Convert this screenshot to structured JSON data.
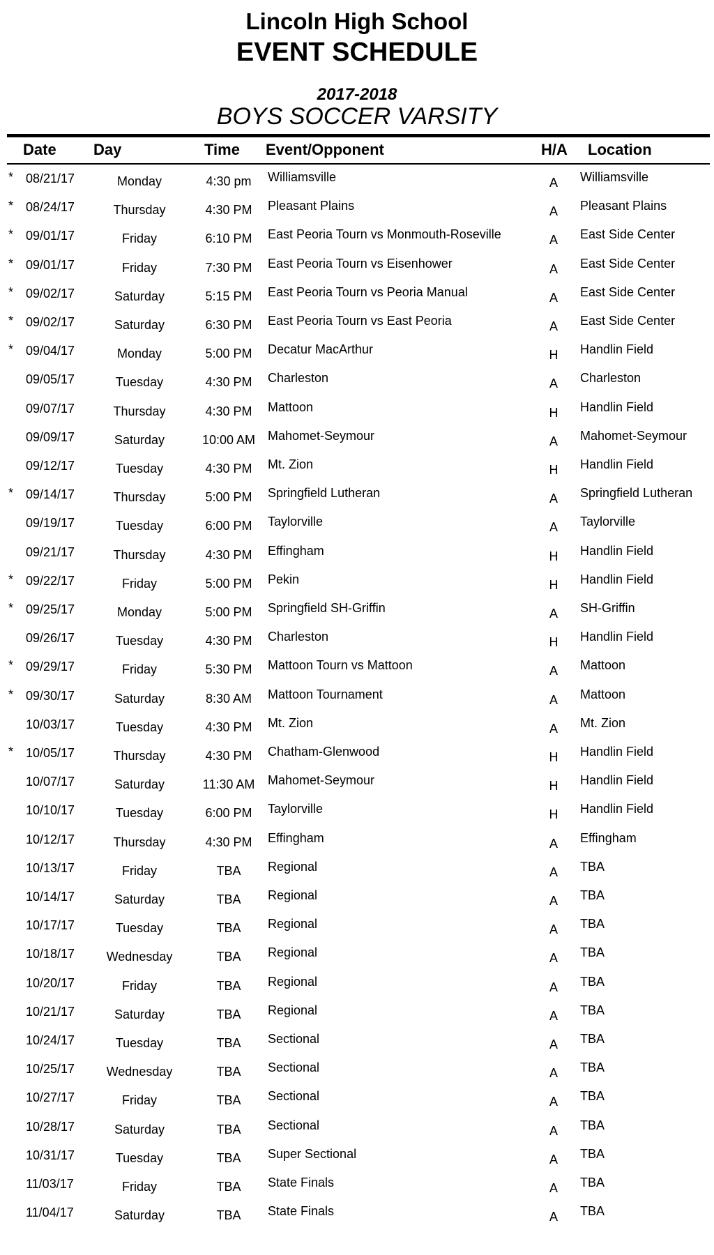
{
  "header": {
    "school": "Lincoln High School",
    "title": "EVENT SCHEDULE",
    "year": "2017-2018",
    "sport": "BOYS SOCCER VARSITY"
  },
  "columns": {
    "date": "Date",
    "day": "Day",
    "time": "Time",
    "event": "Event/Opponent",
    "ha": "H/A",
    "location": "Location"
  },
  "rows": [
    {
      "star": "*",
      "date": "08/21/17",
      "day": "Monday",
      "time": "4:30 pm",
      "event": "Williamsville",
      "ha": "A",
      "location": "Williamsville"
    },
    {
      "star": "*",
      "date": "08/24/17",
      "day": "Thursday",
      "time": "4:30 PM",
      "event": "Pleasant Plains",
      "ha": "A",
      "location": "Pleasant Plains"
    },
    {
      "star": "*",
      "date": "09/01/17",
      "day": "Friday",
      "time": "6:10 PM",
      "event": "East Peoria Tourn vs Monmouth-Roseville",
      "ha": "A",
      "location": "East Side Center"
    },
    {
      "star": "*",
      "date": "09/01/17",
      "day": "Friday",
      "time": "7:30 PM",
      "event": "East Peoria Tourn vs Eisenhower",
      "ha": "A",
      "location": "East Side Center"
    },
    {
      "star": "*",
      "date": "09/02/17",
      "day": "Saturday",
      "time": "5:15 PM",
      "event": "East Peoria Tourn  vs Peoria Manual",
      "ha": "A",
      "location": "East Side Center"
    },
    {
      "star": "*",
      "date": "09/02/17",
      "day": "Saturday",
      "time": "6:30 PM",
      "event": "East Peoria Tourn vs East Peoria",
      "ha": "A",
      "location": "East Side Center"
    },
    {
      "star": "*",
      "date": "09/04/17",
      "day": "Monday",
      "time": "5:00 PM",
      "event": "Decatur MacArthur",
      "ha": "H",
      "location": "Handlin Field"
    },
    {
      "star": "",
      "date": "09/05/17",
      "day": "Tuesday",
      "time": "4:30 PM",
      "event": "Charleston",
      "ha": "A",
      "location": "Charleston"
    },
    {
      "star": "",
      "date": "09/07/17",
      "day": "Thursday",
      "time": "4:30 PM",
      "event": "Mattoon",
      "ha": "H",
      "location": "Handlin Field"
    },
    {
      "star": "",
      "date": "09/09/17",
      "day": "Saturday",
      "time": "10:00 AM",
      "event": "Mahomet-Seymour",
      "ha": "A",
      "location": "Mahomet-Seymour"
    },
    {
      "star": "",
      "date": "09/12/17",
      "day": "Tuesday",
      "time": "4:30 PM",
      "event": "Mt. Zion",
      "ha": "H",
      "location": "Handlin Field"
    },
    {
      "star": "*",
      "date": "09/14/17",
      "day": "Thursday",
      "time": "5:00 PM",
      "event": "Springfield Lutheran",
      "ha": "A",
      "location": "Springfield Lutheran"
    },
    {
      "star": "",
      "date": "09/19/17",
      "day": "Tuesday",
      "time": "6:00 PM",
      "event": "Taylorville",
      "ha": "A",
      "location": "Taylorville"
    },
    {
      "star": "",
      "date": "09/21/17",
      "day": "Thursday",
      "time": "4:30 PM",
      "event": "Effingham",
      "ha": "H",
      "location": "Handlin Field"
    },
    {
      "star": "*",
      "date": "09/22/17",
      "day": "Friday",
      "time": "5:00 PM",
      "event": "Pekin",
      "ha": "H",
      "location": "Handlin Field"
    },
    {
      "star": "*",
      "date": "09/25/17",
      "day": "Monday",
      "time": "5:00 PM",
      "event": "Springfield SH-Griffin",
      "ha": "A",
      "location": "SH-Griffin"
    },
    {
      "star": "",
      "date": "09/26/17",
      "day": "Tuesday",
      "time": "4:30 PM",
      "event": "Charleston",
      "ha": "H",
      "location": "Handlin Field"
    },
    {
      "star": "*",
      "date": "09/29/17",
      "day": "Friday",
      "time": "5:30 PM",
      "event": "Mattoon Tourn vs Mattoon",
      "ha": "A",
      "location": "Mattoon"
    },
    {
      "star": "*",
      "date": "09/30/17",
      "day": "Saturday",
      "time": "8:30 AM",
      "event": "Mattoon Tournament",
      "ha": "A",
      "location": "Mattoon"
    },
    {
      "star": "",
      "date": "10/03/17",
      "day": "Tuesday",
      "time": "4:30 PM",
      "event": "Mt. Zion",
      "ha": "A",
      "location": "Mt. Zion"
    },
    {
      "star": "*",
      "date": "10/05/17",
      "day": "Thursday",
      "time": "4:30 PM",
      "event": "Chatham-Glenwood",
      "ha": "H",
      "location": "Handlin Field"
    },
    {
      "star": "",
      "date": "10/07/17",
      "day": "Saturday",
      "time": "11:30 AM",
      "event": "Mahomet-Seymour",
      "ha": "H",
      "location": "Handlin Field"
    },
    {
      "star": "",
      "date": "10/10/17",
      "day": "Tuesday",
      "time": "6:00 PM",
      "event": "Taylorville",
      "ha": "H",
      "location": "Handlin Field"
    },
    {
      "star": "",
      "date": "10/12/17",
      "day": "Thursday",
      "time": "4:30 PM",
      "event": "Effingham",
      "ha": "A",
      "location": "Effingham"
    },
    {
      "star": "",
      "date": "10/13/17",
      "day": "Friday",
      "time": "TBA",
      "event": "Regional",
      "ha": "A",
      "location": "TBA"
    },
    {
      "star": "",
      "date": "10/14/17",
      "day": "Saturday",
      "time": "TBA",
      "event": "Regional",
      "ha": "A",
      "location": "TBA"
    },
    {
      "star": "",
      "date": "10/17/17",
      "day": "Tuesday",
      "time": "TBA",
      "event": "Regional",
      "ha": "A",
      "location": "TBA"
    },
    {
      "star": "",
      "date": "10/18/17",
      "day": "Wednesday",
      "time": "TBA",
      "event": "Regional",
      "ha": "A",
      "location": "TBA"
    },
    {
      "star": "",
      "date": "10/20/17",
      "day": "Friday",
      "time": "TBA",
      "event": "Regional",
      "ha": "A",
      "location": "TBA"
    },
    {
      "star": "",
      "date": "10/21/17",
      "day": "Saturday",
      "time": "TBA",
      "event": "Regional",
      "ha": "A",
      "location": "TBA"
    },
    {
      "star": "",
      "date": "10/24/17",
      "day": "Tuesday",
      "time": "TBA",
      "event": "Sectional",
      "ha": "A",
      "location": "TBA"
    },
    {
      "star": "",
      "date": "10/25/17",
      "day": "Wednesday",
      "time": "TBA",
      "event": "Sectional",
      "ha": "A",
      "location": "TBA"
    },
    {
      "star": "",
      "date": "10/27/17",
      "day": "Friday",
      "time": "TBA",
      "event": "Sectional",
      "ha": "A",
      "location": "TBA"
    },
    {
      "star": "",
      "date": "10/28/17",
      "day": "Saturday",
      "time": "TBA",
      "event": "Sectional",
      "ha": "A",
      "location": "TBA"
    },
    {
      "star": "",
      "date": "10/31/17",
      "day": "Tuesday",
      "time": "TBA",
      "event": "Super Sectional",
      "ha": "A",
      "location": "TBA"
    },
    {
      "star": "",
      "date": "11/03/17",
      "day": "Friday",
      "time": "TBA",
      "event": "State Finals",
      "ha": "A",
      "location": "TBA"
    },
    {
      "star": "",
      "date": "11/04/17",
      "day": "Saturday",
      "time": "TBA",
      "event": "State Finals",
      "ha": "A",
      "location": "TBA"
    }
  ]
}
